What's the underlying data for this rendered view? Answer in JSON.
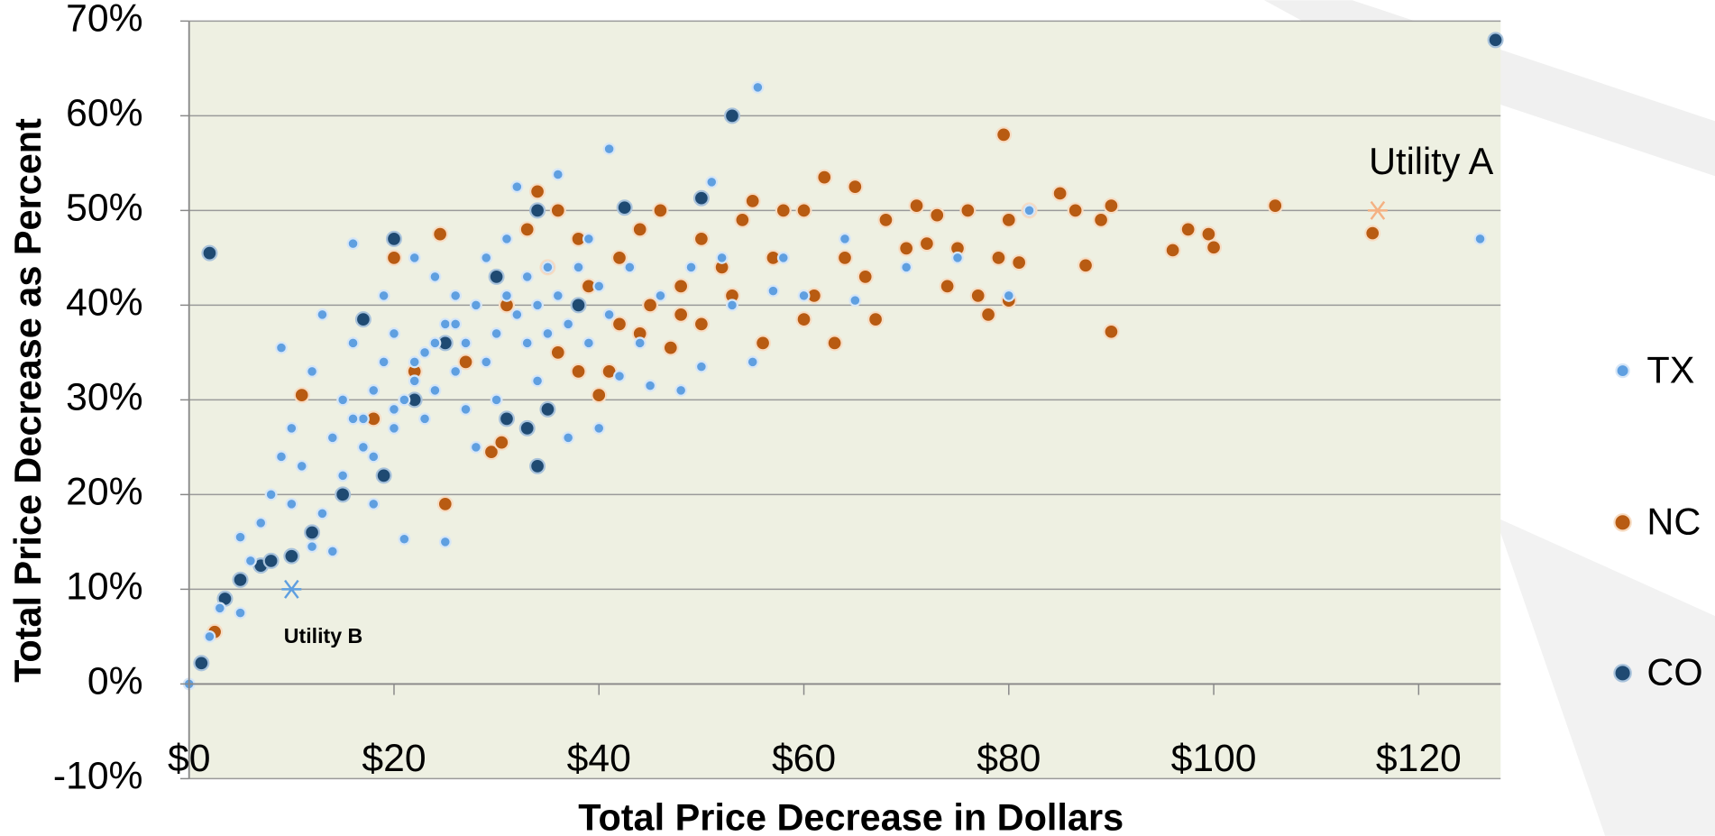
{
  "chart_data": {
    "type": "scatter",
    "x_label": "Total Price Decrease in Dollars",
    "y_label": "Total Price Decrease as Percent",
    "xlim": [
      0,
      128
    ],
    "ylim": [
      -10,
      70
    ],
    "xticks": [
      {
        "value": 0,
        "label": "$0"
      },
      {
        "value": 20,
        "label": "$20"
      },
      {
        "value": 40,
        "label": "$40"
      },
      {
        "value": 60,
        "label": "$60"
      },
      {
        "value": 80,
        "label": "$80"
      },
      {
        "value": 100,
        "label": "$100"
      },
      {
        "value": 120,
        "label": "$120"
      }
    ],
    "yticks": [
      {
        "value": -10,
        "label": "-10%"
      },
      {
        "value": 0,
        "label": "0%"
      },
      {
        "value": 10,
        "label": "10%"
      },
      {
        "value": 20,
        "label": "20%"
      },
      {
        "value": 30,
        "label": "30%"
      },
      {
        "value": 40,
        "label": "40%"
      },
      {
        "value": 50,
        "label": "50%"
      },
      {
        "value": 60,
        "label": "60%"
      },
      {
        "value": 70,
        "label": "70%"
      }
    ],
    "grid": true,
    "legend": "right",
    "series": [
      {
        "name": "TX",
        "color": "#5f9fe0",
        "x": [
          0,
          2,
          3,
          5,
          5,
          6,
          7,
          8,
          9,
          9,
          10,
          10,
          11,
          12,
          12,
          13,
          13,
          14,
          14,
          15,
          15,
          16,
          16,
          17,
          17,
          18,
          18,
          19,
          19,
          20,
          20,
          21,
          21,
          22,
          22,
          23,
          23,
          24,
          24,
          25,
          25,
          26,
          26,
          27,
          27,
          28,
          28,
          29,
          29,
          30,
          30,
          31,
          31,
          32,
          32,
          33,
          33,
          34,
          34,
          35,
          35,
          36,
          36,
          37,
          37,
          38,
          39,
          39,
          40,
          40,
          41,
          41,
          42,
          43,
          44,
          45,
          46,
          48,
          49,
          50,
          51,
          52,
          53,
          55,
          55.5,
          57,
          58,
          60,
          64,
          65,
          70,
          75,
          80,
          82,
          126,
          16,
          18,
          20,
          22,
          24,
          26
        ],
        "y": [
          0,
          5,
          8,
          15.5,
          7.5,
          13,
          17,
          20,
          24,
          35.5,
          27,
          19,
          23,
          14.5,
          33,
          18,
          39,
          26,
          14,
          30,
          22,
          36,
          46.5,
          25,
          28,
          31,
          19,
          34,
          41,
          27,
          37,
          30,
          15.3,
          32,
          45,
          35,
          28,
          43,
          31,
          38,
          15,
          33,
          41,
          36,
          29,
          40,
          25,
          34,
          45,
          37,
          30,
          41,
          47,
          39,
          52.5,
          36,
          43,
          40,
          32,
          44,
          37,
          53.8,
          41,
          26,
          38,
          44,
          36,
          47,
          42,
          27,
          56.5,
          39,
          32.5,
          44,
          36,
          31.5,
          41,
          31,
          44,
          33.5,
          53,
          45,
          40,
          34,
          63,
          41.5,
          45,
          41,
          47,
          40.5,
          44,
          45,
          41,
          50,
          47,
          28,
          24,
          29,
          34,
          36,
          38
        ]
      },
      {
        "name": "NC",
        "color": "#b85b12",
        "x": [
          2.5,
          11,
          20,
          24.5,
          25,
          29.5,
          30.5,
          33,
          34,
          36,
          38,
          40,
          38,
          42,
          44,
          46,
          48,
          50,
          52,
          54,
          55,
          56,
          57,
          58,
          60,
          61,
          62,
          63,
          64,
          65,
          66,
          67,
          68,
          70,
          71,
          72,
          73,
          74,
          75,
          76,
          77,
          78,
          79,
          79.5,
          80,
          80,
          81,
          82,
          85,
          86.5,
          87.5,
          89,
          90,
          90,
          96,
          97.5,
          99.5,
          100,
          106,
          115.5,
          45,
          42,
          47,
          53,
          48,
          36,
          41,
          39,
          35,
          31,
          27,
          22,
          18,
          44,
          50,
          60
        ],
        "y": [
          5.5,
          30.5,
          45,
          47.5,
          19,
          24.5,
          25.5,
          48,
          52,
          50,
          47,
          30.5,
          33,
          45,
          37,
          50,
          42,
          47,
          44,
          49,
          51,
          36,
          45,
          50,
          38.5,
          41,
          53.5,
          36,
          45,
          52.5,
          43,
          38.5,
          49,
          46,
          50.5,
          46.5,
          49.5,
          42,
          46,
          50,
          41,
          39,
          45,
          58,
          49,
          40.5,
          44.5,
          50,
          51.8,
          50,
          44.2,
          49,
          50.5,
          37.2,
          45.8,
          48,
          47.5,
          46.1,
          50.5,
          47.6,
          40,
          38,
          35.5,
          41,
          39,
          35,
          33,
          42,
          44,
          40,
          34,
          33,
          28,
          48,
          38,
          50
        ]
      },
      {
        "name": "CO",
        "color": "#1f4a72",
        "x": [
          1.2,
          3.5,
          5,
          7,
          10,
          2,
          17,
          20,
          15,
          19,
          30,
          31,
          33,
          34,
          35,
          34,
          42.5,
          50,
          53,
          127.5,
          12,
          25,
          38,
          22,
          8
        ],
        "y": [
          2.2,
          9,
          11,
          12.5,
          13.5,
          45.5,
          38.5,
          47,
          20,
          22,
          43,
          28,
          27,
          23,
          29,
          50,
          50.3,
          51.3,
          60,
          68,
          16,
          36,
          40,
          30,
          13
        ]
      }
    ],
    "annotations": [
      {
        "text": "Utility A",
        "x": 116,
        "y": 50,
        "color": "#f4b183"
      },
      {
        "text": "Utility B",
        "x": 10,
        "y": 10,
        "color": "#5f9fe0"
      }
    ]
  }
}
